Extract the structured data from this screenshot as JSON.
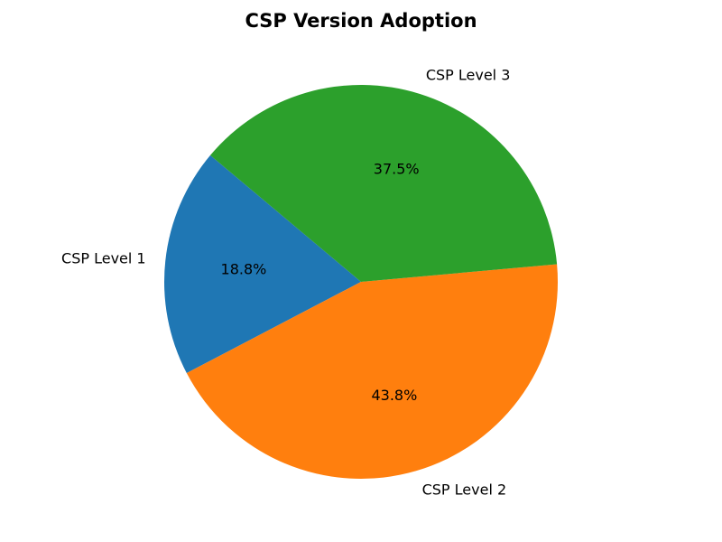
{
  "chart_data": {
    "type": "pie",
    "title": "CSP Version Adoption",
    "categories": [
      "CSP Level 1",
      "CSP Level 2",
      "CSP Level 3"
    ],
    "values": [
      18.8,
      43.8,
      37.5
    ],
    "value_labels": [
      "18.8%",
      "43.8%",
      "37.5%"
    ],
    "colors": [
      "#1f77b4",
      "#ff7f0e",
      "#2ca02c"
    ],
    "start_angle_deg": 140,
    "direction": "counterclockwise",
    "legend": "none"
  }
}
